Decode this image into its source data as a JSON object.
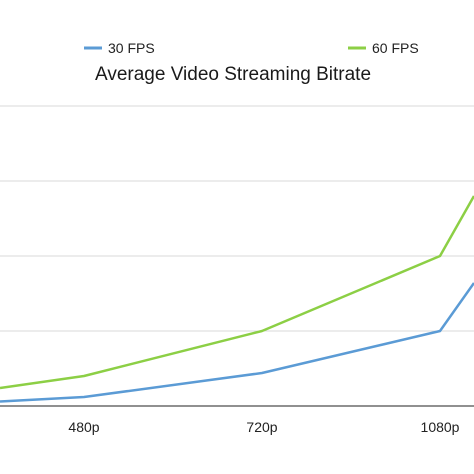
{
  "chart_data": {
    "type": "line",
    "title": "Average Video Streaming Bitrate",
    "xlabel": "",
    "ylabel": "",
    "categories": [
      "",
      "480p",
      "720p",
      "1080p",
      ""
    ],
    "visible_x_ticks": [
      "480p",
      "720p",
      "1080p"
    ],
    "series": [
      {
        "name": "30 FPS",
        "color": "#5b9bd5",
        "values": [
          0.3,
          0.6,
          2.2,
          5.0,
          8.2
        ]
      },
      {
        "name": "60 FPS",
        "color": "#8ccf45",
        "values": [
          1.2,
          2.0,
          5.0,
          10.0,
          14.0
        ]
      }
    ],
    "ylim": [
      0,
      20
    ],
    "grid": true,
    "legend_position": "top"
  }
}
